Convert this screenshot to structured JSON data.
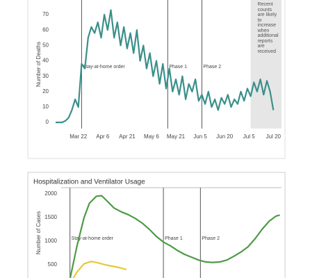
{
  "chart_data": [
    {
      "type": "line",
      "y_label": "Number of Deaths",
      "color": "#3a8f8a",
      "x": [
        "Mar 8",
        "Mar 10",
        "Mar 12",
        "Mar 14",
        "Mar 16",
        "Mar 18",
        "Mar 20",
        "Mar 22",
        "Mar 24",
        "Mar 26",
        "Mar 28",
        "Mar 30",
        "Apr 1",
        "Apr 3",
        "Apr 5",
        "Apr 7",
        "Apr 9",
        "Apr 11",
        "Apr 13",
        "Apr 15",
        "Apr 17",
        "Apr 19",
        "Apr 21",
        "Apr 23",
        "Apr 25",
        "Apr 27",
        "Apr 29",
        "May 1",
        "May 3",
        "May 5",
        "May 7",
        "May 9",
        "May 11",
        "May 13",
        "May 15",
        "May 17",
        "May 19",
        "May 21",
        "May 23",
        "May 25",
        "May 27",
        "May 29",
        "May 31",
        "Jun 2",
        "Jun 4",
        "Jun 6",
        "Jun 8",
        "Jun 10",
        "Jun 12",
        "Jun 14",
        "Jun 16",
        "Jun 18",
        "Jun 20",
        "Jun 22",
        "Jun 24",
        "Jun 26",
        "Jun 28",
        "Jun 30",
        "Jul 2",
        "Jul 4",
        "Jul 6",
        "Jul 8",
        "Jul 10",
        "Jul 12",
        "Jul 14",
        "Jul 16",
        "Jul 18",
        "Jul 20"
      ],
      "values": [
        0,
        0,
        0,
        1,
        3,
        8,
        15,
        10,
        38,
        35,
        55,
        62,
        58,
        65,
        55,
        70,
        60,
        73,
        55,
        65,
        50,
        62,
        48,
        58,
        45,
        60,
        40,
        50,
        35,
        45,
        30,
        40,
        25,
        38,
        22,
        35,
        20,
        28,
        18,
        30,
        15,
        25,
        20,
        28,
        14,
        18,
        12,
        20,
        10,
        15,
        8,
        16,
        12,
        18,
        10,
        15,
        12,
        20,
        14,
        22,
        17,
        26,
        20,
        28,
        18,
        27,
        20,
        8
      ],
      "xlim": [
        "Mar 8",
        "Jul 25"
      ],
      "ylim": [
        -4,
        79.5
      ],
      "xticks": [
        "Mar 22",
        "Apr 6",
        "Apr 21",
        "May 6",
        "May 21",
        "Jun 5",
        "Jun 20",
        "Jul 5",
        "Jul 20"
      ],
      "yticks": [
        0,
        10,
        20,
        30,
        40,
        50,
        60,
        70
      ],
      "events": [
        {
          "x": "Mar 24",
          "label": "Stay-at-home order"
        },
        {
          "x": "May 16",
          "label": "Phase 1"
        },
        {
          "x": "Jun 6",
          "label": "Phase 2"
        }
      ],
      "shade": {
        "x": [
          "Jul 6",
          "Jul 25"
        ],
        "label": "Recent counts are likely to increase when additional reports are received"
      }
    },
    {
      "type": "line",
      "title": "Hospitalization and Ventilator Usage",
      "y_label": "Number of Cases",
      "xlim": [
        "Mar 19",
        "Jul 22"
      ],
      "ylim": [
        0,
        2130
      ],
      "yticks": [
        500,
        1000,
        1500,
        2000
      ],
      "events": [
        {
          "x": "Mar 24",
          "label": "Stay-at-home order"
        },
        {
          "x": "May 16",
          "label": "Phase 1"
        },
        {
          "x": "Jun 6",
          "label": "Phase 2"
        }
      ],
      "series": [
        {
          "color": "#4e9a45",
          "x": [
            "Mar 24",
            "Mar 28",
            "Apr 1",
            "Apr 4",
            "Apr 8",
            "Apr 11",
            "Apr 14",
            "Apr 18",
            "Apr 22",
            "Apr 26",
            "Apr 30",
            "May 4",
            "May 8",
            "May 12",
            "May 16",
            "May 20",
            "May 24",
            "May 28",
            "Jun 1",
            "Jun 5",
            "Jun 9",
            "Jun 13",
            "Jun 17",
            "Jun 21",
            "Jun 25",
            "Jun 29",
            "Jul 3",
            "Jul 7",
            "Jul 11",
            "Jul 15",
            "Jul 19",
            "Jul 21"
          ],
          "values": [
            200,
            900,
            1500,
            1800,
            1950,
            1960,
            1850,
            1700,
            1620,
            1560,
            1480,
            1380,
            1250,
            1100,
            980,
            900,
            800,
            720,
            660,
            600,
            560,
            550,
            560,
            600,
            680,
            770,
            880,
            1050,
            1250,
            1420,
            1530,
            1550
          ]
        },
        {
          "color": "#e3c93a",
          "x": [
            "Mar 24",
            "Mar 28",
            "Apr 1",
            "Apr 5",
            "Apr 9",
            "Apr 13",
            "Apr 17",
            "Apr 21",
            "Apr 25"
          ],
          "values": [
            100,
            350,
            520,
            570,
            540,
            500,
            470,
            440,
            400
          ]
        }
      ]
    }
  ]
}
